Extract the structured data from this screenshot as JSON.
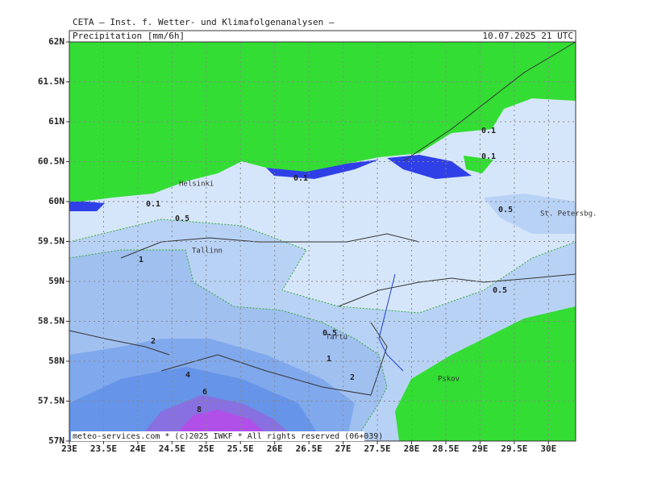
{
  "header": {
    "title": "CETA — Inst. f. Wetter- und Klimafolgenanalysen —",
    "product": "Precipitation [mm/6h]",
    "valid_time": "10.07.2025 21 UTC"
  },
  "map": {
    "lat_ticks": [
      {
        "value": 57,
        "label": "57N"
      },
      {
        "value": 57.5,
        "label": "57.5N"
      },
      {
        "value": 58,
        "label": "58N"
      },
      {
        "value": 58.5,
        "label": "58.5N"
      },
      {
        "value": 59,
        "label": "59N"
      },
      {
        "value": 59.5,
        "label": "59.5N"
      },
      {
        "value": 60,
        "label": "60N"
      },
      {
        "value": 60.5,
        "label": "60.5N"
      },
      {
        "value": 61,
        "label": "61N"
      },
      {
        "value": 61.5,
        "label": "61.5N"
      },
      {
        "value": 62,
        "label": "62N"
      }
    ],
    "lon_ticks": [
      {
        "value": 23,
        "label": "23E"
      },
      {
        "value": 23.5,
        "label": "23.5E"
      },
      {
        "value": 24,
        "label": "24E"
      },
      {
        "value": 24.5,
        "label": "24.5E"
      },
      {
        "value": 25,
        "label": "25E"
      },
      {
        "value": 25.5,
        "label": "25.5E"
      },
      {
        "value": 26,
        "label": "26E"
      },
      {
        "value": 26.5,
        "label": "26.5E"
      },
      {
        "value": 27,
        "label": "27E"
      },
      {
        "value": 27.5,
        "label": "27.5E"
      },
      {
        "value": 28,
        "label": "28E"
      },
      {
        "value": 28.5,
        "label": "28.5E"
      },
      {
        "value": 29,
        "label": "29E"
      },
      {
        "value": 29.5,
        "label": "29.5E"
      },
      {
        "value": 30,
        "label": "30E"
      }
    ],
    "places": [
      "Helsinki",
      "Tallinn",
      "Tartu",
      "St. Petersbg.",
      "Pskov"
    ],
    "contour_labels": [
      "0.1",
      "0.1",
      "0.1",
      "0.1",
      "0.5",
      "0.5",
      "0.5",
      "0.5",
      "1",
      "1",
      "2",
      "2",
      "4",
      "6",
      "8"
    ]
  },
  "footer": "meteo-services.com * (c)2025 IWKF * All rights reserved (06+039)"
}
